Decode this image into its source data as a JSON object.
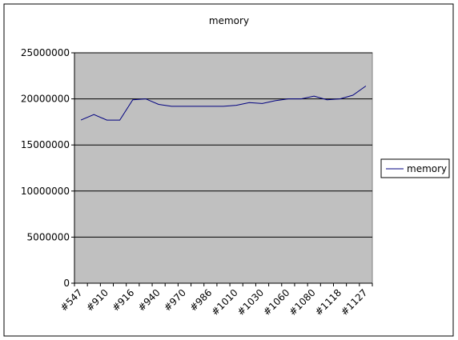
{
  "chart_data": {
    "type": "line",
    "title": "memory",
    "categories": [
      "#547",
      null,
      "#910",
      null,
      "#916",
      null,
      "#940",
      null,
      "#970",
      null,
      "#986",
      null,
      "#1010",
      null,
      "#1030",
      null,
      "#1060",
      null,
      "#1080",
      null,
      "#1118",
      null,
      "#1127"
    ],
    "series": [
      {
        "name": "memory",
        "color": "#000080",
        "values": [
          17700000,
          18300000,
          17700000,
          17700000,
          19900000,
          20000000,
          19400000,
          19200000,
          19200000,
          19200000,
          19200000,
          19200000,
          19300000,
          19600000,
          19500000,
          19800000,
          20000000,
          20000000,
          20300000,
          19900000,
          20000000,
          20400000,
          21400000
        ]
      }
    ],
    "ylim": [
      0,
      25000000
    ],
    "yticks": [
      0,
      5000000,
      10000000,
      15000000,
      20000000,
      25000000
    ],
    "grid": true,
    "legend": "right"
  }
}
